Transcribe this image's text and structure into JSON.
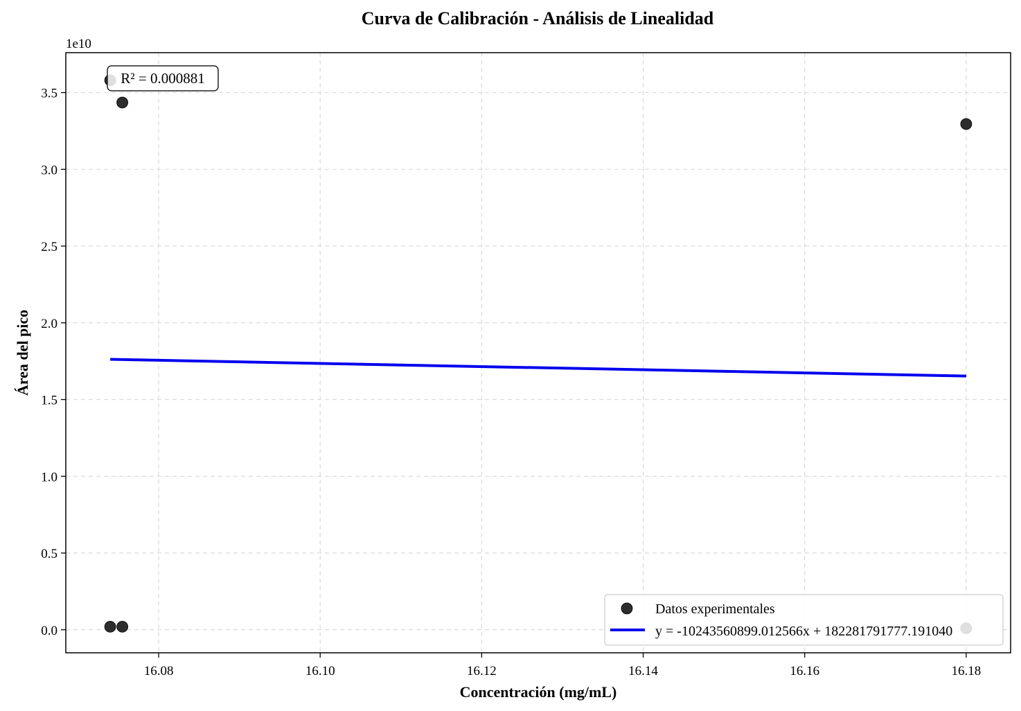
{
  "chart_data": {
    "type": "scatter",
    "title": "Curva de Calibración - Análisis de Linealidad",
    "xlabel": "Concentración (mg/mL)",
    "ylabel": "Área del pico",
    "y_offset_label": "1e10",
    "xlim": [
      16.0685,
      16.1855
    ],
    "ylim": [
      -1.5,
      37.6
    ],
    "x_ticks": [
      16.08,
      16.1,
      16.12,
      16.14,
      16.16,
      16.18
    ],
    "x_tick_labels": [
      "16.08",
      "16.10",
      "16.12",
      "16.14",
      "16.16",
      "16.18"
    ],
    "y_ticks": [
      0.0,
      5.0,
      10.0,
      15.0,
      20.0,
      25.0,
      30.0,
      35.0
    ],
    "y_tick_labels": [
      "0.0",
      "0.5",
      "1.0",
      "1.5",
      "2.0",
      "2.5",
      "3.0",
      "3.5"
    ],
    "y_scale_note": "y values in units of 1e9",
    "grid": true,
    "legend_position": "lower-right",
    "series": [
      {
        "name": "Datos experimentales",
        "kind": "scatter",
        "color": "#222222",
        "points": [
          {
            "x": 16.074,
            "y": 35.8
          },
          {
            "x": 16.0755,
            "y": 34.35
          },
          {
            "x": 16.074,
            "y": 0.2
          },
          {
            "x": 16.0755,
            "y": 0.2
          },
          {
            "x": 16.18,
            "y": 32.95
          },
          {
            "x": 16.18,
            "y": 0.1
          }
        ]
      },
      {
        "name": "y = -10243560899.012566x + 182281791777.191040",
        "kind": "line",
        "color": "#0000ee",
        "points": [
          {
            "x": 16.074,
            "y": 17.62
          },
          {
            "x": 16.18,
            "y": 16.53
          }
        ]
      }
    ],
    "annotations": [
      {
        "text": "R² = 0.000881",
        "position": "top-left"
      }
    ]
  }
}
